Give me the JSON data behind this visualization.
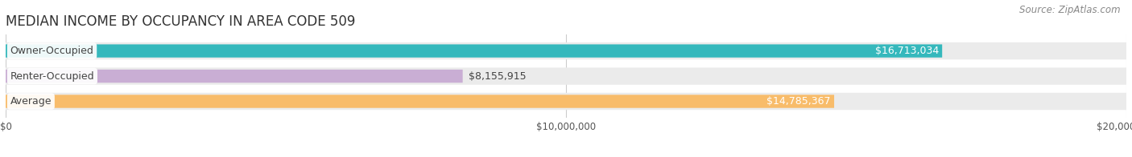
{
  "title": "MEDIAN INCOME BY OCCUPANCY IN AREA CODE 509",
  "source": "Source: ZipAtlas.com",
  "categories": [
    "Owner-Occupied",
    "Renter-Occupied",
    "Average"
  ],
  "values": [
    16713034,
    8155915,
    14785367
  ],
  "labels": [
    "$16,713,034",
    "$8,155,915",
    "$14,785,367"
  ],
  "bar_colors": [
    "#35b8bc",
    "#c9aed4",
    "#f8bc6a"
  ],
  "bar_bg_color": "#ebebeb",
  "xlim": [
    0,
    20000000
  ],
  "xtick_labels": [
    "$0",
    "$10,000,000",
    "$20,000,000"
  ],
  "xtick_values": [
    0,
    10000000,
    20000000
  ],
  "title_fontsize": 12,
  "source_fontsize": 8.5,
  "label_fontsize": 9,
  "cat_fontsize": 9,
  "label_inside_color": [
    "white",
    "black",
    "white"
  ],
  "label_inside": [
    true,
    false,
    true
  ],
  "background_color": "#ffffff"
}
